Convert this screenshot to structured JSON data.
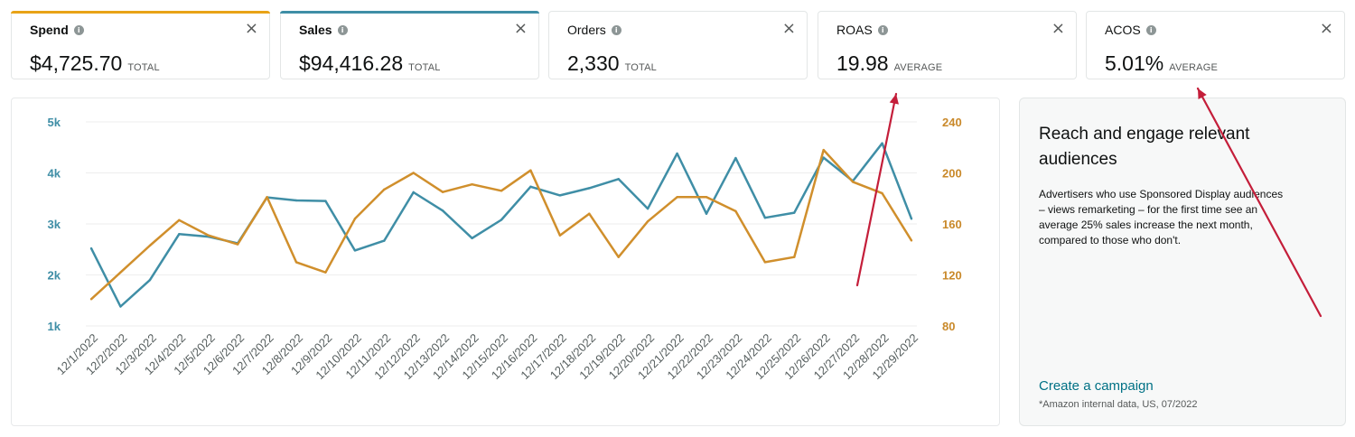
{
  "metrics": [
    {
      "label": "Spend",
      "value": "$4,725.70",
      "suffix": "TOTAL",
      "color": "#e8a317",
      "selected": true
    },
    {
      "label": "Sales",
      "value": "$94,416.28",
      "suffix": "TOTAL",
      "color": "#3f8ea6",
      "selected": true
    },
    {
      "label": "Orders",
      "value": "2,330",
      "suffix": "TOTAL",
      "color": "",
      "selected": false
    },
    {
      "label": "ROAS",
      "value": "19.98",
      "suffix": "AVERAGE",
      "color": "",
      "selected": false
    },
    {
      "label": "ACOS",
      "value": "5.01%",
      "suffix": "AVERAGE",
      "color": "",
      "selected": false
    }
  ],
  "info_icon": "info-icon",
  "close_icon": "close-icon",
  "chart_data": {
    "type": "line",
    "categories": [
      "12/1/2022",
      "12/2/2022",
      "12/3/2022",
      "12/4/2022",
      "12/5/2022",
      "12/6/2022",
      "12/7/2022",
      "12/8/2022",
      "12/9/2022",
      "12/10/2022",
      "12/11/2022",
      "12/12/2022",
      "12/13/2022",
      "12/14/2022",
      "12/15/2022",
      "12/16/2022",
      "12/17/2022",
      "12/18/2022",
      "12/19/2022",
      "12/20/2022",
      "12/21/2022",
      "12/22/2022",
      "12/23/2022",
      "12/24/2022",
      "12/25/2022",
      "12/26/2022",
      "12/27/2022",
      "12/28/2022",
      "12/29/2022"
    ],
    "left_axis": {
      "ticks": [
        "1k",
        "2k",
        "3k",
        "4k",
        "5k"
      ],
      "min": 1000,
      "max": 5000,
      "color": "#3f8ea6"
    },
    "right_axis": {
      "ticks": [
        "80",
        "120",
        "160",
        "200",
        "240"
      ],
      "min": 80,
      "max": 240,
      "color": "#c9892a"
    },
    "series": [
      {
        "name": "Sales",
        "axis": "left",
        "color": "#3f8ea6",
        "values": [
          2520,
          1380,
          1900,
          2800,
          2750,
          2620,
          3520,
          3460,
          3450,
          2480,
          2670,
          3620,
          3260,
          2720,
          3080,
          3730,
          3560,
          3700,
          3880,
          3300,
          4380,
          3200,
          4290,
          3120,
          3220,
          4300,
          3840,
          4580,
          3100
        ]
      },
      {
        "name": "Spend",
        "axis": "right",
        "color": "#d08f2c",
        "values": [
          101,
          122,
          143,
          163,
          151,
          144,
          181,
          130,
          122,
          164,
          187,
          200,
          185,
          191,
          186,
          202,
          151,
          168,
          134,
          162,
          181,
          181,
          170,
          130,
          134,
          218,
          193,
          184,
          147
        ]
      }
    ]
  },
  "side_panel": {
    "title": "Reach and engage relevant audiences",
    "body": "Advertisers who use Sponsored Display audiences – views remarketing – for the first time see an average 25% sales increase the next month, compared to those who don't.",
    "link": "Create a campaign",
    "footnote": "*Amazon internal data, US, 07/2022"
  },
  "annotation_color": "#c41e3a"
}
